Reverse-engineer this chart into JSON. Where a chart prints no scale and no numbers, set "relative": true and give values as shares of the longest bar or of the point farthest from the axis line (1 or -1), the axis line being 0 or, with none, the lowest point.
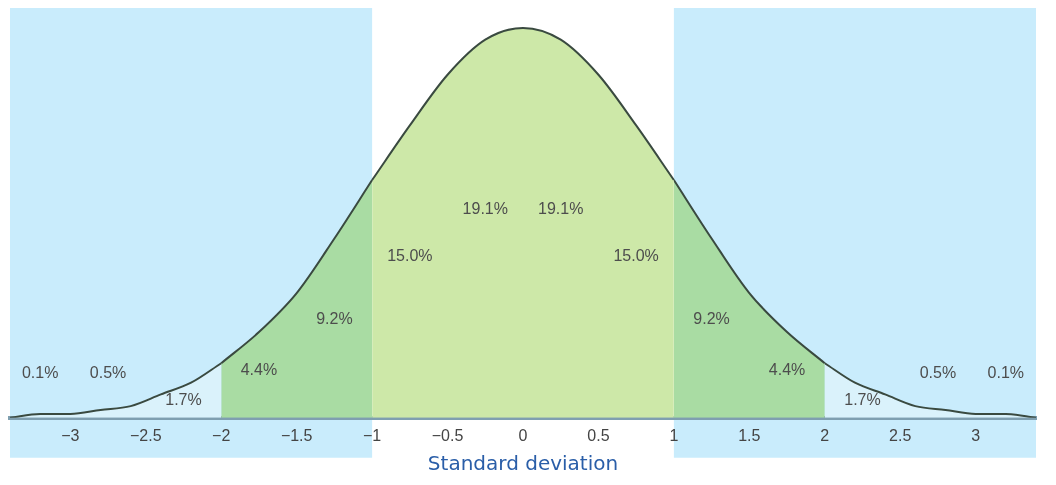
{
  "chart_data": {
    "type": "area",
    "relative": true,
    "marker": "none",
    "xlabel": "Standard deviation",
    "xlim": [
      -3.4,
      3.4
    ],
    "xticks": [
      {
        "value": -3,
        "label": "−3"
      },
      {
        "value": -2.5,
        "label": "−2.5"
      },
      {
        "value": -2,
        "label": "−2"
      },
      {
        "value": -1.5,
        "label": "−1.5"
      },
      {
        "value": -1,
        "label": "−1"
      },
      {
        "value": -0.5,
        "label": "−0.5"
      },
      0,
      0.5,
      1,
      1.5,
      2,
      2.5,
      3
    ],
    "series": [
      {
        "color": "#daf2fb",
        "x": [
          -3.4,
          -3.2,
          -3.0,
          -2.8,
          -2.6,
          -2.4,
          -2.2,
          -2.0
        ],
        "values": [
          0,
          0.01,
          0.01,
          0.02,
          0.03,
          0.06,
          0.09,
          0.14
        ]
      },
      {
        "color": "#a9dca3",
        "x": [
          -2.0,
          -1.75,
          -1.5,
          -1.25,
          -1.0
        ],
        "values": [
          0.14,
          0.22,
          0.32,
          0.46,
          0.61
        ]
      },
      {
        "color": "#cde8a8",
        "x": [
          -1.0,
          -0.75,
          -0.5,
          -0.25,
          0,
          0.25,
          0.5,
          0.75,
          1.0
        ],
        "values": [
          0.61,
          0.75,
          0.88,
          0.97,
          1,
          0.97,
          0.88,
          0.75,
          0.61
        ]
      },
      {
        "color": "#a9dca3",
        "x": [
          1.0,
          1.25,
          1.5,
          1.75,
          2.0
        ],
        "values": [
          0.61,
          0.46,
          0.32,
          0.22,
          0.14
        ]
      },
      {
        "color": "#daf2fb",
        "x": [
          2.0,
          2.2,
          2.4,
          2.6,
          2.8,
          3.0,
          3.2,
          3.4
        ],
        "values": [
          0.14,
          0.09,
          0.06,
          0.03,
          0.02,
          0.01,
          0.01,
          0
        ]
      }
    ],
    "bands": [
      {
        "axis": "x",
        "from": -3.4,
        "to": -1,
        "color": "#c9ecfc"
      },
      {
        "axis": "x",
        "from": 1,
        "to": 3.4,
        "color": "#c9ecfc"
      }
    ],
    "annotations": [
      "0.1%",
      "0.5%",
      "1.7%",
      "4.4%",
      "9.2%",
      "15.0%",
      "19.1%",
      "19.1%",
      "15.0%",
      "9.2%",
      "4.4%",
      "1.7%",
      "0.5%",
      "0.1%"
    ]
  }
}
